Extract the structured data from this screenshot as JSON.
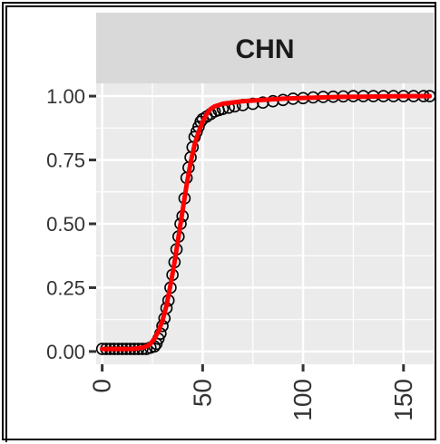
{
  "chart_data": {
    "type": "scatter",
    "facet_label": "CHN",
    "xlim": [
      -3,
      165
    ],
    "ylim": [
      -0.05,
      1.05
    ],
    "x_ticks": [
      0,
      50,
      100,
      150
    ],
    "x_tick_labels": [
      "0",
      "50",
      "100",
      "150"
    ],
    "y_ticks": [
      0,
      0.25,
      0.5,
      0.75,
      1.0
    ],
    "y_tick_labels": [
      "0.00",
      "0.25",
      "0.50",
      "0.75",
      "1.00"
    ],
    "grid": true,
    "colors": {
      "panel_bg": "#ebebeb",
      "strip_bg": "#d9d9d9",
      "grid": "#ffffff",
      "points": "#000000",
      "fit_line": "#ff0000"
    },
    "series": [
      {
        "kind": "points",
        "x": [
          0,
          2,
          4,
          6,
          8,
          10,
          12,
          14,
          16,
          18,
          20,
          22,
          24,
          26,
          27,
          28,
          29,
          30,
          31,
          32,
          33,
          34,
          35,
          36,
          37,
          38,
          39,
          40,
          41,
          42,
          43,
          44,
          45,
          46,
          47,
          48,
          49,
          50,
          52,
          54,
          56,
          58,
          60,
          63,
          66,
          70,
          75,
          80,
          85,
          90,
          95,
          100,
          105,
          110,
          115,
          120,
          125,
          130,
          135,
          140,
          145,
          150,
          155,
          160,
          163
        ],
        "y": [
          0.01,
          0.01,
          0.01,
          0.01,
          0.01,
          0.01,
          0.01,
          0.01,
          0.01,
          0.01,
          0.01,
          0.01,
          0.015,
          0.02,
          0.03,
          0.05,
          0.07,
          0.1,
          0.13,
          0.17,
          0.2,
          0.25,
          0.3,
          0.35,
          0.4,
          0.45,
          0.5,
          0.53,
          0.6,
          0.68,
          0.72,
          0.76,
          0.8,
          0.84,
          0.86,
          0.88,
          0.9,
          0.91,
          0.92,
          0.93,
          0.94,
          0.945,
          0.95,
          0.955,
          0.96,
          0.965,
          0.97,
          0.975,
          0.98,
          0.985,
          0.99,
          0.992,
          0.995,
          0.997,
          0.998,
          0.999,
          1.0,
          1.0,
          1.0,
          1.0,
          1.0,
          1.0,
          1.0,
          1.0,
          1.0
        ]
      },
      {
        "kind": "fit",
        "x": [
          0,
          5,
          10,
          15,
          20,
          22,
          24,
          26,
          28,
          30,
          32,
          34,
          36,
          38,
          40,
          42,
          44,
          46,
          48,
          50,
          52,
          54,
          56,
          58,
          60,
          65,
          70,
          80,
          90,
          100,
          110,
          120,
          130,
          140,
          150,
          160,
          163
        ],
        "y": [
          0.01,
          0.01,
          0.01,
          0.01,
          0.015,
          0.02,
          0.03,
          0.05,
          0.08,
          0.12,
          0.18,
          0.26,
          0.35,
          0.45,
          0.55,
          0.65,
          0.74,
          0.81,
          0.86,
          0.9,
          0.93,
          0.95,
          0.96,
          0.965,
          0.97,
          0.975,
          0.98,
          0.985,
          0.99,
          0.993,
          0.995,
          0.997,
          0.998,
          0.999,
          1.0,
          1.0,
          1.0
        ]
      }
    ]
  }
}
